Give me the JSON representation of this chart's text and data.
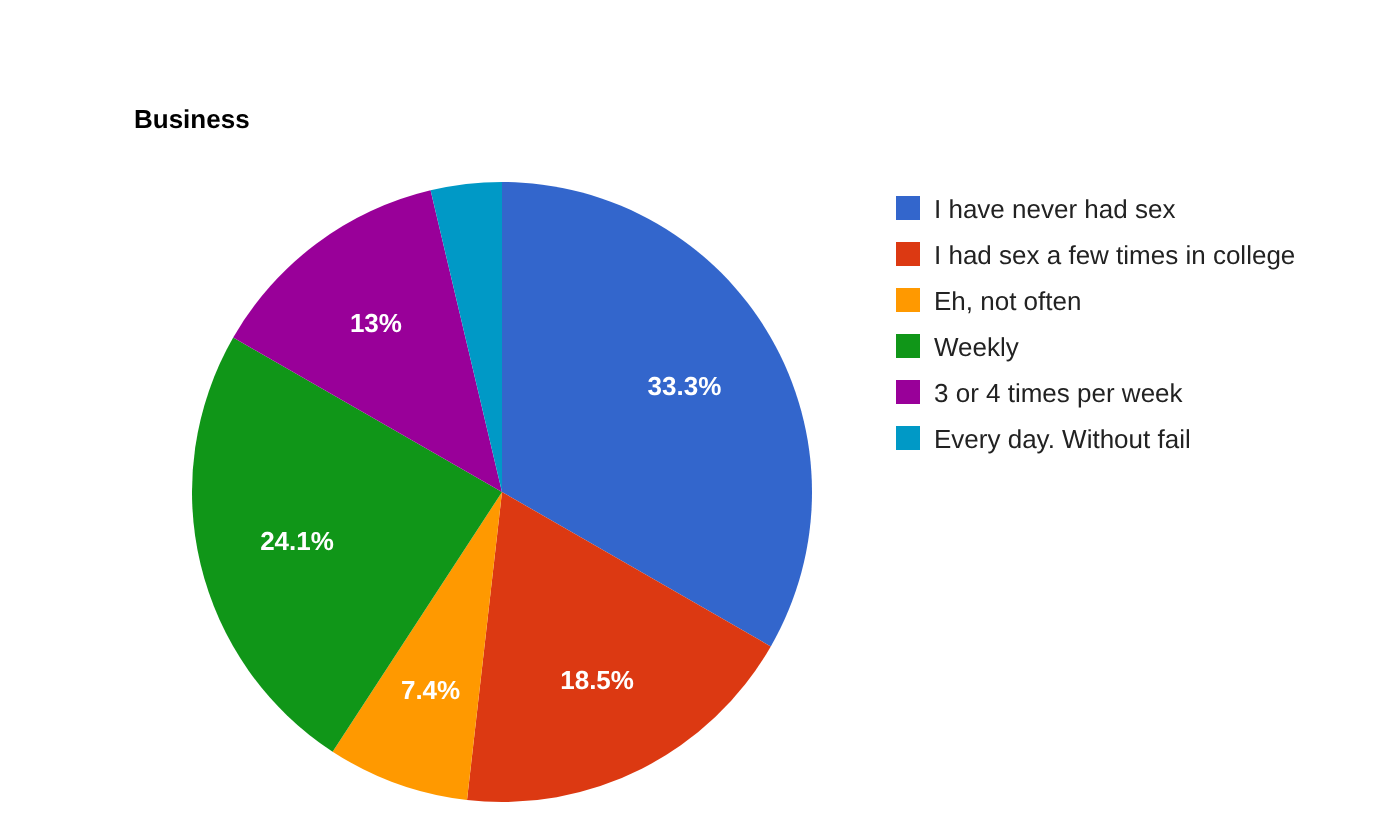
{
  "chart_data": {
    "type": "pie",
    "title": "Business",
    "categories": [
      "I have never had sex",
      "I had sex a few times in college",
      "Eh, not often",
      "Weekly",
      "3 or 4 times per week",
      "Every day. Without fail"
    ],
    "values": [
      33.3,
      18.5,
      7.4,
      24.1,
      13,
      3.7
    ],
    "value_labels": [
      "33.3%",
      "18.5%",
      "7.4%",
      "24.1%",
      "13%",
      null
    ],
    "colors": [
      "#3366cc",
      "#dc3912",
      "#ff9900",
      "#109618",
      "#990099",
      "#0099c6"
    ],
    "legend": "right"
  }
}
